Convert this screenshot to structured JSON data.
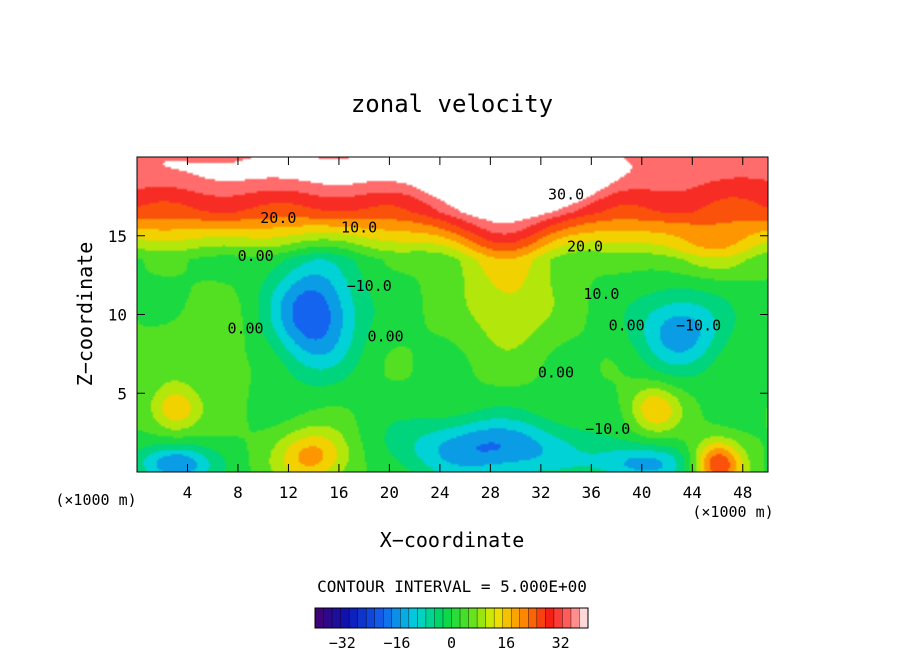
{
  "chart_data": {
    "type": "heatmap",
    "title": "zonal velocity",
    "xlabel": "X−coordinate",
    "ylabel": "Z−coordinate",
    "x_unit_left": "(×1000 m)",
    "x_unit_right": "(×1000 m)",
    "xlim": [
      0,
      50
    ],
    "ylim": [
      0,
      20
    ],
    "x_ticks": [
      4,
      8,
      12,
      16,
      20,
      24,
      28,
      32,
      36,
      40,
      44,
      48
    ],
    "y_ticks": [
      5,
      10,
      15
    ],
    "contour_interval_text": "CONTOUR INTERVAL = 5.000E+00",
    "colorbar": {
      "range": [
        -40,
        40
      ],
      "ticks": [
        -32,
        -16,
        0,
        16,
        32
      ]
    },
    "contour_labels": [
      {
        "text": "30.0",
        "x": 34,
        "z": 17.3
      },
      {
        "text": "20.0",
        "x": 11.2,
        "z": 15.8
      },
      {
        "text": "10.0",
        "x": 17.6,
        "z": 15.2
      },
      {
        "text": "0.00",
        "x": 9.4,
        "z": 13.4
      },
      {
        "text": "−10.0",
        "x": 18.4,
        "z": 11.5
      },
      {
        "text": "0.00",
        "x": 8.6,
        "z": 8.8
      },
      {
        "text": "0.00",
        "x": 19.7,
        "z": 8.3
      },
      {
        "text": "20.0",
        "x": 35.5,
        "z": 14.0
      },
      {
        "text": "10.0",
        "x": 36.8,
        "z": 11.0
      },
      {
        "text": "0.00",
        "x": 38.8,
        "z": 9.0
      },
      {
        "text": "0.00",
        "x": 33.2,
        "z": 6.0
      },
      {
        "text": "−10.0",
        "x": 44.5,
        "z": 9.0
      },
      {
        "text": "−10.0",
        "x": 37.3,
        "z": 2.4
      }
    ],
    "anomalies": [
      {
        "x": 30.5,
        "z": 18.5,
        "rx": 5.0,
        "rz": 1.4,
        "v": 30
      },
      {
        "x": 19.0,
        "z": 19.0,
        "rx": 30.0,
        "rz": 1.6,
        "v": 10
      },
      {
        "x": 29.0,
        "z": 15.5,
        "rx": 4.5,
        "rz": 3.0,
        "v": 16
      },
      {
        "x": 29.5,
        "z": 10.5,
        "rx": 3.5,
        "rz": 3.0,
        "v": 10
      },
      {
        "x": 14.0,
        "z": 10.0,
        "rx": 3.5,
        "rz": 3.5,
        "v": -24
      },
      {
        "x": 28.0,
        "z": 1.5,
        "rx": 7.0,
        "rz": 2.0,
        "v": -20
      },
      {
        "x": 43.0,
        "z": 9.0,
        "rx": 3.5,
        "rz": 2.5,
        "v": -18
      },
      {
        "x": 14.0,
        "z": 1.0,
        "rx": 3.0,
        "rz": 1.8,
        "v": 18
      },
      {
        "x": 46.0,
        "z": 0.5,
        "rx": 2.0,
        "rz": 1.5,
        "v": 25
      },
      {
        "x": 41.0,
        "z": 4.0,
        "rx": 2.0,
        "rz": 1.5,
        "v": 15
      },
      {
        "x": 3.0,
        "z": 4.0,
        "rx": 2.0,
        "rz": 1.5,
        "v": 15
      },
      {
        "x": 3.0,
        "z": 0.5,
        "rx": 3.0,
        "rz": 1.2,
        "v": -20
      },
      {
        "x": 40.0,
        "z": 0.5,
        "rx": 4.0,
        "rz": 1.2,
        "v": -16
      },
      {
        "x": 6.0,
        "z": 8.0,
        "rx": 5.0,
        "rz": 3.0,
        "v": 3
      },
      {
        "x": 45.0,
        "z": 14.0,
        "rx": 4.0,
        "rz": 1.5,
        "v": 10
      }
    ]
  }
}
